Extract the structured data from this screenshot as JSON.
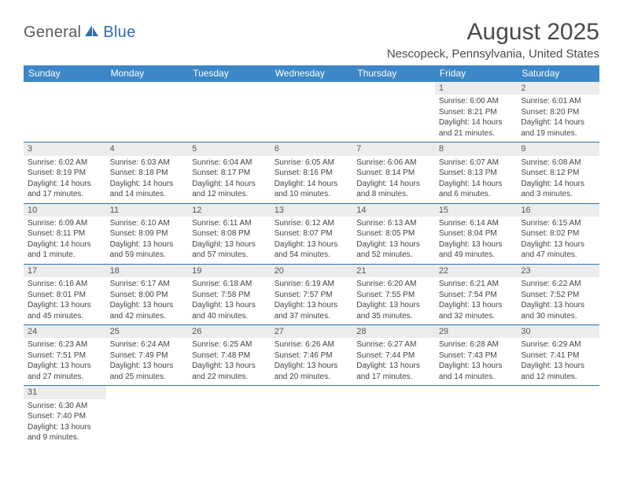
{
  "logo": {
    "general": "General",
    "blue": "Blue"
  },
  "title": "August 2025",
  "location": "Nescopeck, Pennsylvania, United States",
  "columns": [
    "Sunday",
    "Monday",
    "Tuesday",
    "Wednesday",
    "Thursday",
    "Friday",
    "Saturday"
  ],
  "colors": {
    "header_bg": "#3c87c7",
    "header_text": "#ffffff",
    "daynum_bg": "#ececec",
    "border": "#2f6fb3",
    "title_color": "#4a4a4a",
    "body_text": "#444444",
    "logo_dark": "#5a5a5a",
    "logo_blue": "#2f6fb3"
  },
  "typography": {
    "title_fontsize": 30,
    "location_fontsize": 15,
    "header_fontsize": 12,
    "daynum_fontsize": 11,
    "body_fontsize": 10
  },
  "weeks": [
    [
      {
        "n": "",
        "lines": []
      },
      {
        "n": "",
        "lines": []
      },
      {
        "n": "",
        "lines": []
      },
      {
        "n": "",
        "lines": []
      },
      {
        "n": "",
        "lines": []
      },
      {
        "n": "1",
        "lines": [
          "Sunrise: 6:00 AM",
          "Sunset: 8:21 PM",
          "Daylight: 14 hours and 21 minutes."
        ]
      },
      {
        "n": "2",
        "lines": [
          "Sunrise: 6:01 AM",
          "Sunset: 8:20 PM",
          "Daylight: 14 hours and 19 minutes."
        ]
      }
    ],
    [
      {
        "n": "3",
        "lines": [
          "Sunrise: 6:02 AM",
          "Sunset: 8:19 PM",
          "Daylight: 14 hours and 17 minutes."
        ]
      },
      {
        "n": "4",
        "lines": [
          "Sunrise: 6:03 AM",
          "Sunset: 8:18 PM",
          "Daylight: 14 hours and 14 minutes."
        ]
      },
      {
        "n": "5",
        "lines": [
          "Sunrise: 6:04 AM",
          "Sunset: 8:17 PM",
          "Daylight: 14 hours and 12 minutes."
        ]
      },
      {
        "n": "6",
        "lines": [
          "Sunrise: 6:05 AM",
          "Sunset: 8:16 PM",
          "Daylight: 14 hours and 10 minutes."
        ]
      },
      {
        "n": "7",
        "lines": [
          "Sunrise: 6:06 AM",
          "Sunset: 8:14 PM",
          "Daylight: 14 hours and 8 minutes."
        ]
      },
      {
        "n": "8",
        "lines": [
          "Sunrise: 6:07 AM",
          "Sunset: 8:13 PM",
          "Daylight: 14 hours and 6 minutes."
        ]
      },
      {
        "n": "9",
        "lines": [
          "Sunrise: 6:08 AM",
          "Sunset: 8:12 PM",
          "Daylight: 14 hours and 3 minutes."
        ]
      }
    ],
    [
      {
        "n": "10",
        "lines": [
          "Sunrise: 6:09 AM",
          "Sunset: 8:11 PM",
          "Daylight: 14 hours and 1 minute."
        ]
      },
      {
        "n": "11",
        "lines": [
          "Sunrise: 6:10 AM",
          "Sunset: 8:09 PM",
          "Daylight: 13 hours and 59 minutes."
        ]
      },
      {
        "n": "12",
        "lines": [
          "Sunrise: 6:11 AM",
          "Sunset: 8:08 PM",
          "Daylight: 13 hours and 57 minutes."
        ]
      },
      {
        "n": "13",
        "lines": [
          "Sunrise: 6:12 AM",
          "Sunset: 8:07 PM",
          "Daylight: 13 hours and 54 minutes."
        ]
      },
      {
        "n": "14",
        "lines": [
          "Sunrise: 6:13 AM",
          "Sunset: 8:05 PM",
          "Daylight: 13 hours and 52 minutes."
        ]
      },
      {
        "n": "15",
        "lines": [
          "Sunrise: 6:14 AM",
          "Sunset: 8:04 PM",
          "Daylight: 13 hours and 49 minutes."
        ]
      },
      {
        "n": "16",
        "lines": [
          "Sunrise: 6:15 AM",
          "Sunset: 8:02 PM",
          "Daylight: 13 hours and 47 minutes."
        ]
      }
    ],
    [
      {
        "n": "17",
        "lines": [
          "Sunrise: 6:16 AM",
          "Sunset: 8:01 PM",
          "Daylight: 13 hours and 45 minutes."
        ]
      },
      {
        "n": "18",
        "lines": [
          "Sunrise: 6:17 AM",
          "Sunset: 8:00 PM",
          "Daylight: 13 hours and 42 minutes."
        ]
      },
      {
        "n": "19",
        "lines": [
          "Sunrise: 6:18 AM",
          "Sunset: 7:58 PM",
          "Daylight: 13 hours and 40 minutes."
        ]
      },
      {
        "n": "20",
        "lines": [
          "Sunrise: 6:19 AM",
          "Sunset: 7:57 PM",
          "Daylight: 13 hours and 37 minutes."
        ]
      },
      {
        "n": "21",
        "lines": [
          "Sunrise: 6:20 AM",
          "Sunset: 7:55 PM",
          "Daylight: 13 hours and 35 minutes."
        ]
      },
      {
        "n": "22",
        "lines": [
          "Sunrise: 6:21 AM",
          "Sunset: 7:54 PM",
          "Daylight: 13 hours and 32 minutes."
        ]
      },
      {
        "n": "23",
        "lines": [
          "Sunrise: 6:22 AM",
          "Sunset: 7:52 PM",
          "Daylight: 13 hours and 30 minutes."
        ]
      }
    ],
    [
      {
        "n": "24",
        "lines": [
          "Sunrise: 6:23 AM",
          "Sunset: 7:51 PM",
          "Daylight: 13 hours and 27 minutes."
        ]
      },
      {
        "n": "25",
        "lines": [
          "Sunrise: 6:24 AM",
          "Sunset: 7:49 PM",
          "Daylight: 13 hours and 25 minutes."
        ]
      },
      {
        "n": "26",
        "lines": [
          "Sunrise: 6:25 AM",
          "Sunset: 7:48 PM",
          "Daylight: 13 hours and 22 minutes."
        ]
      },
      {
        "n": "27",
        "lines": [
          "Sunrise: 6:26 AM",
          "Sunset: 7:46 PM",
          "Daylight: 13 hours and 20 minutes."
        ]
      },
      {
        "n": "28",
        "lines": [
          "Sunrise: 6:27 AM",
          "Sunset: 7:44 PM",
          "Daylight: 13 hours and 17 minutes."
        ]
      },
      {
        "n": "29",
        "lines": [
          "Sunrise: 6:28 AM",
          "Sunset: 7:43 PM",
          "Daylight: 13 hours and 14 minutes."
        ]
      },
      {
        "n": "30",
        "lines": [
          "Sunrise: 6:29 AM",
          "Sunset: 7:41 PM",
          "Daylight: 13 hours and 12 minutes."
        ]
      }
    ],
    [
      {
        "n": "31",
        "lines": [
          "Sunrise: 6:30 AM",
          "Sunset: 7:40 PM",
          "Daylight: 13 hours and 9 minutes."
        ]
      },
      {
        "n": "",
        "lines": []
      },
      {
        "n": "",
        "lines": []
      },
      {
        "n": "",
        "lines": []
      },
      {
        "n": "",
        "lines": []
      },
      {
        "n": "",
        "lines": []
      },
      {
        "n": "",
        "lines": []
      }
    ]
  ]
}
